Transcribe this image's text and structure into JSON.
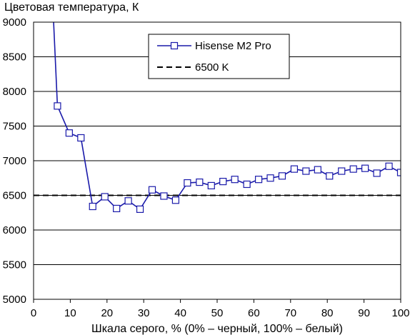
{
  "chart_data": {
    "type": "line",
    "title": "",
    "ylabel": "Цветовая температура, К",
    "xlabel": "Шкала серого, % (0% – черный, 100% – белый)",
    "xlim": [
      0,
      100
    ],
    "ylim": [
      5000,
      9000
    ],
    "xticks": [
      "0",
      "10",
      "20",
      "30",
      "40",
      "50",
      "60",
      "70",
      "80",
      "90",
      "100"
    ],
    "yticks": [
      "5000",
      "5500",
      "6000",
      "6500",
      "7000",
      "7500",
      "8000",
      "8500",
      "9000"
    ],
    "grid": "horizontal",
    "legend_position": "top-center",
    "series": [
      {
        "name": "Hisense M2 Pro",
        "color": "#1a1aaa",
        "marker": "open-square",
        "x": [
          5.2,
          6.5,
          9.7,
          12.9,
          16.1,
          19.4,
          22.6,
          25.8,
          29.0,
          32.3,
          35.5,
          38.7,
          41.9,
          45.2,
          48.4,
          51.6,
          54.8,
          58.1,
          61.3,
          64.5,
          67.7,
          71.0,
          74.2,
          77.4,
          80.6,
          83.9,
          87.1,
          90.3,
          93.5,
          96.8,
          100.0
        ],
        "y": [
          9300,
          7790,
          7400,
          7330,
          6340,
          6480,
          6310,
          6420,
          6300,
          6580,
          6490,
          6430,
          6680,
          6690,
          6640,
          6700,
          6730,
          6660,
          6730,
          6750,
          6780,
          6880,
          6850,
          6870,
          6780,
          6850,
          6880,
          6890,
          6820,
          6920,
          6830
        ]
      },
      {
        "name": "6500 K",
        "color": "#000000",
        "style": "dashed",
        "x": [
          0,
          100
        ],
        "y": [
          6500,
          6500
        ]
      }
    ]
  }
}
